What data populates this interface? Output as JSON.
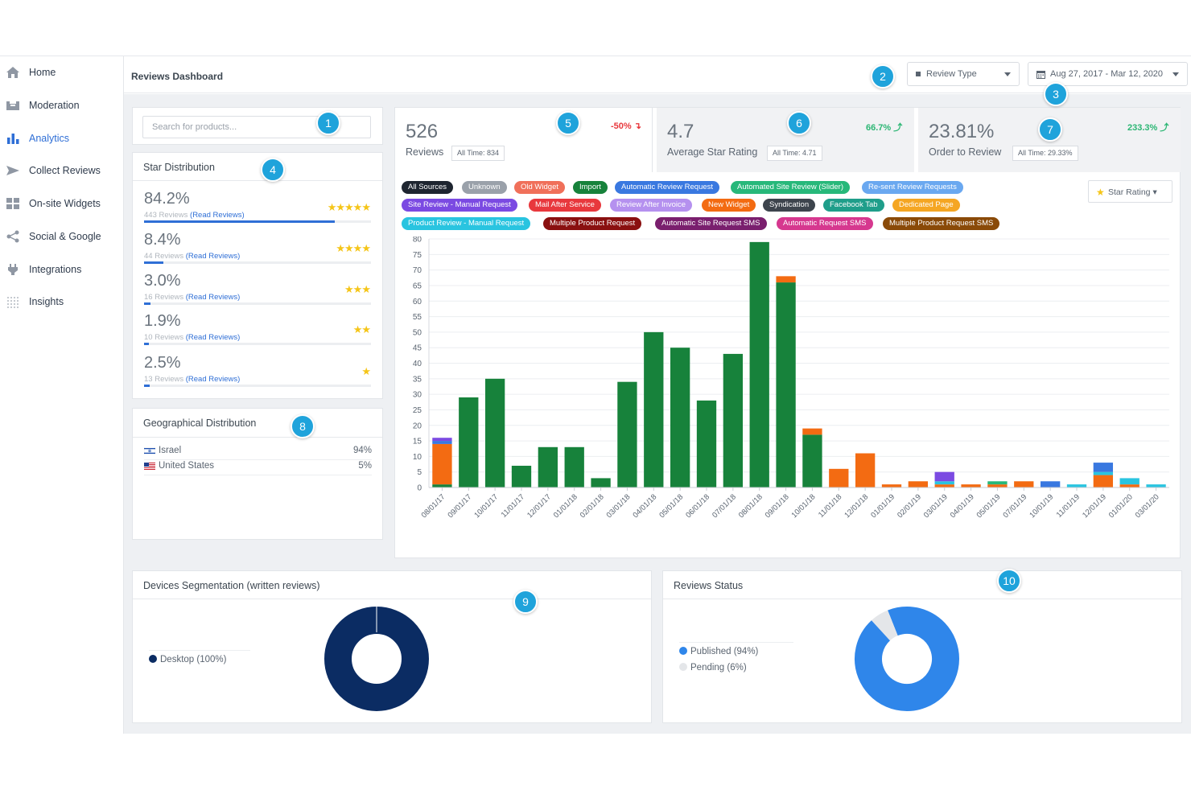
{
  "nav": {
    "items": [
      {
        "label": "Home",
        "icon": "home-icon"
      },
      {
        "label": "Moderation",
        "icon": "inbox-icon"
      },
      {
        "label": "Analytics",
        "icon": "bar-chart-icon"
      },
      {
        "label": "Collect Reviews",
        "icon": "send-icon"
      },
      {
        "label": "On-site Widgets",
        "icon": "widgets-icon"
      },
      {
        "label": "Social & Google",
        "icon": "share-icon"
      },
      {
        "label": "Integrations",
        "icon": "plug-icon"
      },
      {
        "label": "Insights",
        "icon": "dots-grid-icon"
      }
    ],
    "active_index": 2
  },
  "header": {
    "title": "Reviews Dashboard",
    "review_type_label": "Review Type",
    "date_range_label": "Aug 27, 2017 - Mar 12, 2020"
  },
  "badges": [
    "1",
    "2",
    "3",
    "4",
    "5",
    "6",
    "7",
    "8",
    "9",
    "10"
  ],
  "search": {
    "placeholder": "Search for products..."
  },
  "star_distribution": {
    "title": "Star Distribution",
    "read_label": "(Read Reviews)",
    "rows": [
      {
        "pct": "84.2%",
        "count": "443 Reviews",
        "stars": "★★★★★",
        "fraction": 0.842
      },
      {
        "pct": "8.4%",
        "count": "44 Reviews",
        "stars": "★★★★",
        "fraction": 0.084
      },
      {
        "pct": "3.0%",
        "count": "16 Reviews",
        "stars": "★★★",
        "fraction": 0.03
      },
      {
        "pct": "1.9%",
        "count": "10 Reviews",
        "stars": "★★",
        "fraction": 0.019
      },
      {
        "pct": "2.5%",
        "count": "13 Reviews",
        "stars": "★",
        "fraction": 0.025
      }
    ]
  },
  "geo": {
    "title": "Geographical Distribution",
    "rows": [
      {
        "country": "Israel",
        "value": "94%"
      },
      {
        "country": "United States",
        "value": "5%"
      }
    ]
  },
  "kpis": [
    {
      "value": "526",
      "label": "Reviews",
      "all_time": "All Time: 834",
      "delta": "-50% ↴",
      "delta_color": "#e8383d"
    },
    {
      "value": "4.7",
      "label": "Average Star Rating",
      "all_time": "All Time: 4.71",
      "delta": "66.7% ⤴",
      "delta_color": "#2bb673"
    },
    {
      "value": "23.81%",
      "label": "Order to Review",
      "all_time": "All Time: 29.33%",
      "delta": "233.3% ⤴",
      "delta_color": "#2bb673"
    }
  ],
  "sources": [
    {
      "label": "All Sources",
      "color": "#1e2530"
    },
    {
      "label": "Unknown",
      "color": "#9aa1aa"
    },
    {
      "label": "Old Widget",
      "color": "#f0705a"
    },
    {
      "label": "Import",
      "color": "#17823b"
    },
    {
      "label": "Automatic Review Request",
      "color": "#3978e0"
    },
    {
      "label": "Automated Site Review (Slider)",
      "color": "#27b87a"
    },
    {
      "label": "Re-sent Review Requests",
      "color": "#6aa8f0"
    },
    {
      "label": "Site Review - Manual Request",
      "color": "#7b4ae2"
    },
    {
      "label": "Mail After Service",
      "color": "#e8383d"
    },
    {
      "label": "Review After Invoice",
      "color": "#b591ef"
    },
    {
      "label": "New Widget",
      "color": "#f36b12"
    },
    {
      "label": "Syndication",
      "color": "#3d444d"
    },
    {
      "label": "Facebook Tab",
      "color": "#1f9e8a"
    },
    {
      "label": "Dedicated Page",
      "color": "#f5a623"
    },
    {
      "label": "Product Review - Manual Request",
      "color": "#29c4e0"
    },
    {
      "label": "Multiple Product Request",
      "color": "#8a1010"
    },
    {
      "label": "Automatic Site Request SMS",
      "color": "#7a1f6e"
    },
    {
      "label": "Automatic Request SMS",
      "color": "#d6388f"
    },
    {
      "label": "Multiple Product Request SMS",
      "color": "#8a4a08"
    }
  ],
  "star_rating_button": "Star Rating ▾",
  "chart_data": {
    "type": "bar",
    "stacked": true,
    "categories": [
      "08/01/17",
      "09/01/17",
      "10/01/17",
      "11/01/17",
      "12/01/17",
      "01/01/18",
      "02/01/18",
      "03/01/18",
      "04/01/18",
      "05/01/18",
      "06/01/18",
      "07/01/18",
      "08/01/18",
      "09/01/18",
      "10/01/18",
      "11/01/18",
      "12/01/18",
      "01/01/19",
      "02/01/19",
      "03/01/19",
      "04/01/19",
      "05/01/19",
      "07/01/19",
      "10/01/19",
      "11/01/19",
      "12/01/19",
      "01/01/20",
      "03/01/20"
    ],
    "ylim": [
      0,
      80
    ],
    "yticks": [
      0,
      5,
      10,
      15,
      20,
      25,
      30,
      35,
      40,
      45,
      50,
      55,
      60,
      65,
      70,
      75,
      80
    ],
    "grid": true,
    "series": [
      {
        "name": "Import",
        "color": "#17823b",
        "values": [
          1,
          29,
          35,
          7,
          13,
          13,
          3,
          34,
          50,
          45,
          28,
          43,
          79,
          66,
          17,
          0,
          0,
          0,
          0,
          0,
          0,
          0,
          0,
          0,
          0,
          0,
          0,
          0
        ]
      },
      {
        "name": "New Widget",
        "color": "#f36b12",
        "values": [
          13,
          0,
          0,
          0,
          0,
          0,
          0,
          0,
          0,
          0,
          0,
          0,
          0,
          2,
          2,
          6,
          11,
          1,
          2,
          1,
          1,
          1,
          2,
          0,
          0,
          4,
          1,
          0
        ]
      },
      {
        "name": "Product Review - Manual Request",
        "color": "#29c4e0",
        "values": [
          0,
          0,
          0,
          0,
          0,
          0,
          0,
          0,
          0,
          0,
          0,
          0,
          0,
          0,
          0,
          0,
          0,
          0,
          0,
          1,
          0,
          0,
          0,
          0,
          1,
          1,
          2,
          1
        ]
      },
      {
        "name": "Automated Site Review (Slider)",
        "color": "#27b87a",
        "values": [
          0,
          0,
          0,
          0,
          0,
          0,
          0,
          0,
          0,
          0,
          0,
          0,
          0,
          0,
          0,
          0,
          0,
          0,
          0,
          0,
          0,
          1,
          0,
          0,
          0,
          0,
          0,
          0
        ]
      },
      {
        "name": "Automatic Review Request",
        "color": "#3978e0",
        "values": [
          1,
          0,
          0,
          0,
          0,
          0,
          0,
          0,
          0,
          0,
          0,
          0,
          0,
          0,
          0,
          0,
          0,
          0,
          0,
          0,
          0,
          0,
          0,
          2,
          0,
          3,
          0,
          0
        ]
      },
      {
        "name": "Site Review - Manual Request",
        "color": "#7b4ae2",
        "values": [
          1,
          0,
          0,
          0,
          0,
          0,
          0,
          0,
          0,
          0,
          0,
          0,
          0,
          0,
          0,
          0,
          0,
          0,
          0,
          3,
          0,
          0,
          0,
          0,
          0,
          0,
          0,
          0
        ]
      }
    ]
  },
  "devices": {
    "title": "Devices Segmentation (written reviews)",
    "legend": [
      {
        "label": "Desktop (100%)",
        "color": "#0b2c63",
        "fraction": 1.0
      }
    ]
  },
  "status": {
    "title": "Reviews Status",
    "legend": [
      {
        "label": "Published (94%)",
        "color": "#2f86ea",
        "fraction": 0.94
      },
      {
        "label": "Pending (6%)",
        "color": "#e4e6e9",
        "fraction": 0.06
      }
    ]
  }
}
